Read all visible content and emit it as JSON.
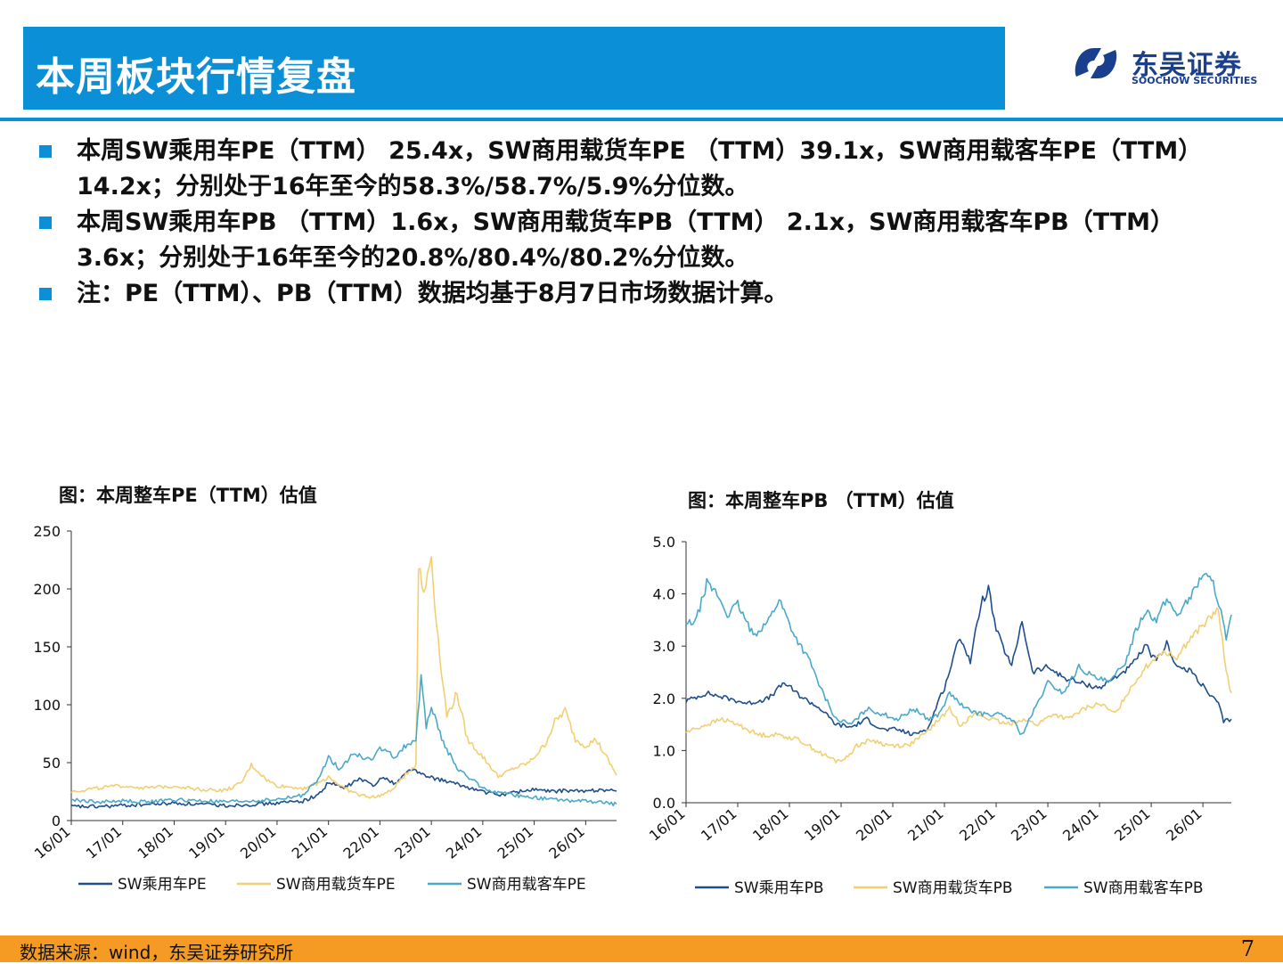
{
  "header": {
    "title": "本周板块行情复盘"
  },
  "logo": {
    "name": "东吴证券",
    "subtitle": "SOOCHOW SECURITIES",
    "color": "#1a3f8c"
  },
  "bullets": [
    "本周SW乘用车PE（TTM） 25.4x，SW商用载货车PE （TTM）39.1x，SW商用载客车PE（TTM） 14.2x；分别处于16年至今的58.3%/58.7%/5.9%分位数。",
    "本周SW乘用车PB （TTM）1.6x，SW商用载货车PB（TTM） 2.1x，SW商用载客车PB（TTM） 3.6x；分别处于16年至今的20.8%/80.4%/80.2%分位数。",
    "注：PE（TTM）、PB（TTM）数据均基于8月7日市场数据计算。"
  ],
  "footer": {
    "source": "数据来源：wind，东吴证券研究所",
    "page": "7"
  },
  "colors": {
    "accent": "#0b8fd6",
    "footer": "#f59a23"
  },
  "chart_data": [
    {
      "type": "line",
      "title": "图：本周整车PE（TTM）估值",
      "x_ticks": [
        "16/01",
        "17/01",
        "18/01",
        "19/01",
        "20/01",
        "21/01",
        "22/01",
        "23/01",
        "24/01",
        "25/01",
        "26/01"
      ],
      "ylim": [
        0,
        250
      ],
      "y_ticks": [
        0,
        50,
        100,
        150,
        200,
        250
      ],
      "x_range": [
        2016.0,
        2026.6
      ],
      "legend": "bottom",
      "series": [
        {
          "name": "SW乘用车PE",
          "color": "#1f4e8c",
          "points": [
            [
              2016.0,
              12
            ],
            [
              2016.5,
              12
            ],
            [
              2017.0,
              13
            ],
            [
              2017.5,
              14
            ],
            [
              2018.0,
              15
            ],
            [
              2018.5,
              14
            ],
            [
              2019.0,
              13
            ],
            [
              2019.5,
              14
            ],
            [
              2020.0,
              15
            ],
            [
              2020.5,
              17
            ],
            [
              2020.8,
              22
            ],
            [
              2021.0,
              33
            ],
            [
              2021.3,
              28
            ],
            [
              2021.6,
              36
            ],
            [
              2021.9,
              30
            ],
            [
              2022.0,
              38
            ],
            [
              2022.3,
              32
            ],
            [
              2022.6,
              45
            ],
            [
              2022.9,
              38
            ],
            [
              2023.2,
              35
            ],
            [
              2023.6,
              30
            ],
            [
              2024.0,
              25
            ],
            [
              2024.3,
              22
            ],
            [
              2024.7,
              25
            ],
            [
              2025.0,
              27
            ],
            [
              2025.3,
              25
            ],
            [
              2025.7,
              26
            ],
            [
              2026.0,
              25
            ],
            [
              2026.3,
              27
            ],
            [
              2026.6,
              25.4
            ]
          ]
        },
        {
          "name": "SW商用载货车PE",
          "color": "#f2cf72",
          "points": [
            [
              2016.0,
              25
            ],
            [
              2016.5,
              28
            ],
            [
              2017.0,
              30
            ],
            [
              2017.5,
              28
            ],
            [
              2018.0,
              30
            ],
            [
              2018.5,
              27
            ],
            [
              2019.0,
              26
            ],
            [
              2019.3,
              32
            ],
            [
              2019.5,
              48
            ],
            [
              2019.8,
              35
            ],
            [
              2020.0,
              30
            ],
            [
              2020.5,
              28
            ],
            [
              2020.8,
              32
            ],
            [
              2021.0,
              38
            ],
            [
              2021.3,
              28
            ],
            [
              2021.6,
              22
            ],
            [
              2021.9,
              20
            ],
            [
              2022.2,
              25
            ],
            [
              2022.5,
              40
            ],
            [
              2022.7,
              48
            ],
            [
              2022.75,
              220
            ],
            [
              2022.85,
              195
            ],
            [
              2023.0,
              230
            ],
            [
              2023.1,
              170
            ],
            [
              2023.3,
              90
            ],
            [
              2023.5,
              110
            ],
            [
              2023.7,
              70
            ],
            [
              2024.0,
              55
            ],
            [
              2024.3,
              38
            ],
            [
              2024.6,
              45
            ],
            [
              2024.9,
              50
            ],
            [
              2025.2,
              65
            ],
            [
              2025.4,
              85
            ],
            [
              2025.6,
              95
            ],
            [
              2025.8,
              70
            ],
            [
              2026.0,
              65
            ],
            [
              2026.2,
              70
            ],
            [
              2026.4,
              55
            ],
            [
              2026.6,
              39.1
            ]
          ]
        },
        {
          "name": "SW商用载客车PE",
          "color": "#4aa9c9",
          "points": [
            [
              2016.0,
              18
            ],
            [
              2016.5,
              16
            ],
            [
              2017.0,
              17
            ],
            [
              2017.5,
              16
            ],
            [
              2018.0,
              18
            ],
            [
              2018.5,
              17
            ],
            [
              2019.0,
              16
            ],
            [
              2019.5,
              17
            ],
            [
              2020.0,
              18
            ],
            [
              2020.5,
              22
            ],
            [
              2020.8,
              35
            ],
            [
              2021.0,
              55
            ],
            [
              2021.2,
              45
            ],
            [
              2021.5,
              58
            ],
            [
              2021.8,
              52
            ],
            [
              2022.0,
              62
            ],
            [
              2022.3,
              55
            ],
            [
              2022.5,
              65
            ],
            [
              2022.7,
              70
            ],
            [
              2022.8,
              122
            ],
            [
              2022.9,
              80
            ],
            [
              2023.0,
              100
            ],
            [
              2023.2,
              70
            ],
            [
              2023.5,
              45
            ],
            [
              2023.8,
              35
            ],
            [
              2024.0,
              28
            ],
            [
              2024.3,
              24
            ],
            [
              2024.6,
              22
            ],
            [
              2025.0,
              20
            ],
            [
              2025.4,
              18
            ],
            [
              2025.8,
              17
            ],
            [
              2026.2,
              16
            ],
            [
              2026.6,
              14.2
            ]
          ]
        }
      ]
    },
    {
      "type": "line",
      "title": "图：本周整车PB （TTM）估值",
      "x_ticks": [
        "16/01",
        "17/01",
        "18/01",
        "19/01",
        "20/01",
        "21/01",
        "22/01",
        "23/01",
        "24/01",
        "25/01",
        "26/01"
      ],
      "ylim": [
        0,
        5
      ],
      "y_ticks": [
        "0.0",
        "1.0",
        "2.0",
        "3.0",
        "4.0",
        "5.0"
      ],
      "x_range": [
        2016.0,
        2026.55
      ],
      "legend": "bottom",
      "series": [
        {
          "name": "SW乘用车PB",
          "color": "#1f4e8c",
          "points": [
            [
              2016.0,
              1.95
            ],
            [
              2016.4,
              2.1
            ],
            [
              2016.8,
              2.0
            ],
            [
              2017.2,
              1.9
            ],
            [
              2017.6,
              2.0
            ],
            [
              2017.9,
              2.3
            ],
            [
              2018.2,
              2.05
            ],
            [
              2018.6,
              1.8
            ],
            [
              2018.9,
              1.5
            ],
            [
              2019.2,
              1.45
            ],
            [
              2019.5,
              1.6
            ],
            [
              2019.8,
              1.4
            ],
            [
              2020.1,
              1.4
            ],
            [
              2020.4,
              1.3
            ],
            [
              2020.7,
              1.45
            ],
            [
              2020.9,
              2.0
            ],
            [
              2021.0,
              2.2
            ],
            [
              2021.3,
              3.2
            ],
            [
              2021.5,
              2.7
            ],
            [
              2021.7,
              3.8
            ],
            [
              2021.85,
              4.1
            ],
            [
              2022.0,
              3.3
            ],
            [
              2022.3,
              2.6
            ],
            [
              2022.5,
              3.5
            ],
            [
              2022.7,
              2.5
            ],
            [
              2023.0,
              2.6
            ],
            [
              2023.3,
              2.4
            ],
            [
              2023.6,
              2.3
            ],
            [
              2024.0,
              2.2
            ],
            [
              2024.3,
              2.4
            ],
            [
              2024.6,
              2.6
            ],
            [
              2024.9,
              3.0
            ],
            [
              2025.1,
              2.7
            ],
            [
              2025.3,
              3.05
            ],
            [
              2025.5,
              2.6
            ],
            [
              2025.8,
              2.5
            ],
            [
              2026.1,
              2.1
            ],
            [
              2026.3,
              1.9
            ],
            [
              2026.4,
              1.55
            ],
            [
              2026.55,
              1.6
            ]
          ]
        },
        {
          "name": "SW商用载货车PB",
          "color": "#f2cf72",
          "points": [
            [
              2016.0,
              1.35
            ],
            [
              2016.4,
              1.5
            ],
            [
              2016.7,
              1.6
            ],
            [
              2017.0,
              1.5
            ],
            [
              2017.4,
              1.3
            ],
            [
              2017.8,
              1.3
            ],
            [
              2018.2,
              1.2
            ],
            [
              2018.6,
              0.95
            ],
            [
              2018.9,
              0.8
            ],
            [
              2019.1,
              0.85
            ],
            [
              2019.3,
              1.1
            ],
            [
              2019.6,
              1.2
            ],
            [
              2019.9,
              1.1
            ],
            [
              2020.3,
              1.1
            ],
            [
              2020.6,
              1.3
            ],
            [
              2020.9,
              1.6
            ],
            [
              2021.1,
              1.8
            ],
            [
              2021.3,
              1.5
            ],
            [
              2021.6,
              1.7
            ],
            [
              2021.9,
              1.6
            ],
            [
              2022.2,
              1.5
            ],
            [
              2022.5,
              1.6
            ],
            [
              2022.8,
              1.5
            ],
            [
              2023.1,
              1.7
            ],
            [
              2023.4,
              1.6
            ],
            [
              2023.7,
              1.8
            ],
            [
              2024.0,
              1.9
            ],
            [
              2024.3,
              1.7
            ],
            [
              2024.6,
              2.2
            ],
            [
              2024.9,
              2.6
            ],
            [
              2025.2,
              2.9
            ],
            [
              2025.5,
              2.8
            ],
            [
              2025.8,
              3.2
            ],
            [
              2026.1,
              3.5
            ],
            [
              2026.3,
              3.7
            ],
            [
              2026.45,
              2.5
            ],
            [
              2026.55,
              2.1
            ]
          ]
        },
        {
          "name": "SW商用载客车PB",
          "color": "#4aa9c9",
          "points": [
            [
              2016.0,
              3.4
            ],
            [
              2016.2,
              3.5
            ],
            [
              2016.4,
              4.2
            ],
            [
              2016.6,
              4.0
            ],
            [
              2016.8,
              3.6
            ],
            [
              2017.0,
              3.8
            ],
            [
              2017.3,
              3.2
            ],
            [
              2017.6,
              3.5
            ],
            [
              2017.8,
              3.9
            ],
            [
              2018.1,
              3.2
            ],
            [
              2018.4,
              2.7
            ],
            [
              2018.6,
              2.2
            ],
            [
              2018.9,
              1.6
            ],
            [
              2019.2,
              1.5
            ],
            [
              2019.5,
              1.8
            ],
            [
              2019.8,
              1.7
            ],
            [
              2020.1,
              1.6
            ],
            [
              2020.4,
              1.8
            ],
            [
              2020.7,
              1.6
            ],
            [
              2020.9,
              1.7
            ],
            [
              2021.1,
              2.1
            ],
            [
              2021.4,
              1.8
            ],
            [
              2021.7,
              1.7
            ],
            [
              2022.0,
              1.7
            ],
            [
              2022.3,
              1.6
            ],
            [
              2022.5,
              1.3
            ],
            [
              2022.8,
              1.9
            ],
            [
              2023.0,
              2.3
            ],
            [
              2023.3,
              2.1
            ],
            [
              2023.6,
              2.6
            ],
            [
              2023.9,
              2.4
            ],
            [
              2024.2,
              2.3
            ],
            [
              2024.5,
              2.7
            ],
            [
              2024.7,
              3.3
            ],
            [
              2024.9,
              3.7
            ],
            [
              2025.1,
              3.5
            ],
            [
              2025.3,
              3.9
            ],
            [
              2025.5,
              3.6
            ],
            [
              2025.8,
              4.0
            ],
            [
              2026.0,
              4.4
            ],
            [
              2026.2,
              4.2
            ],
            [
              2026.35,
              3.7
            ],
            [
              2026.45,
              3.1
            ],
            [
              2026.55,
              3.6
            ]
          ]
        }
      ]
    }
  ]
}
